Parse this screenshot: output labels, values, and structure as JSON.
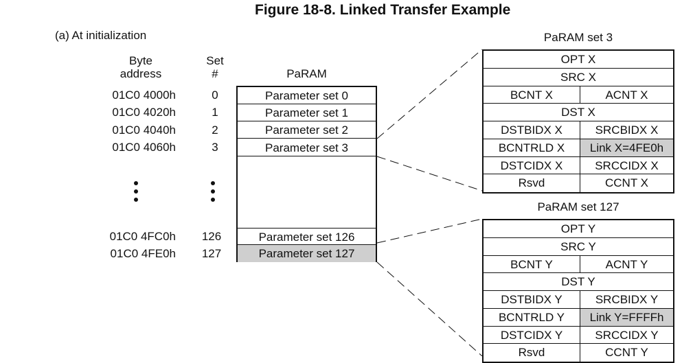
{
  "figure_title": "Figure 18-8. Linked Transfer Example",
  "subtitle": "(a)  At initialization",
  "headers": {
    "byte_address_line1": "Byte",
    "byte_address_line2": "address",
    "set_line1": "Set",
    "set_line2": "#",
    "param": "PaRAM"
  },
  "rows_top": [
    {
      "address": "01C0 4000h",
      "set": "0",
      "label": "Parameter set 0"
    },
    {
      "address": "01C0 4020h",
      "set": "1",
      "label": "Parameter set 1"
    },
    {
      "address": "01C0 4040h",
      "set": "2",
      "label": "Parameter set 2"
    },
    {
      "address": "01C0 4060h",
      "set": "3",
      "label": "Parameter set 3"
    }
  ],
  "rows_bottom": [
    {
      "address": "01C0 4FC0h",
      "set": "126",
      "label": "Parameter set 126"
    },
    {
      "address": "01C0 4FE0h",
      "set": "127",
      "label": "Parameter set 127"
    }
  ],
  "detail_x": {
    "title": "PaRAM set 3",
    "rows": [
      [
        "OPT X"
      ],
      [
        "SRC X"
      ],
      [
        "BCNT X",
        "ACNT X"
      ],
      [
        "DST X"
      ],
      [
        "DSTBIDX X",
        "SRCBIDX X"
      ],
      [
        "BCNTRLD X",
        "Link X=4FE0h"
      ],
      [
        "DSTCIDX X",
        "SRCCIDX X"
      ],
      [
        "Rsvd",
        "CCNT X"
      ]
    ]
  },
  "detail_y": {
    "title": "PaRAM set 127",
    "rows": [
      [
        "OPT Y"
      ],
      [
        "SRC Y"
      ],
      [
        "BCNT Y",
        "ACNT Y"
      ],
      [
        "DST Y"
      ],
      [
        "DSTBIDX Y",
        "SRCBIDX Y"
      ],
      [
        "BCNTRLD Y",
        "Link Y=FFFFh"
      ],
      [
        "DSTCIDX Y",
        "SRCCIDX Y"
      ],
      [
        "Rsvd",
        "CCNT Y"
      ]
    ]
  },
  "colors": {
    "highlight": "#cfcfcf",
    "line": "#111111"
  }
}
